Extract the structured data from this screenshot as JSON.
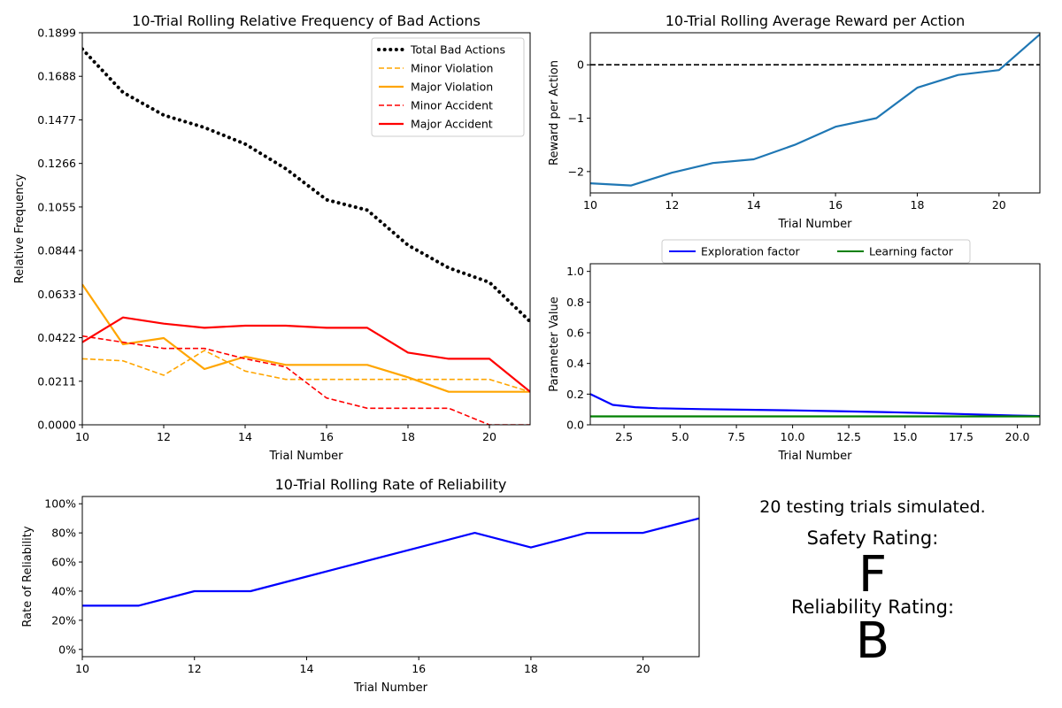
{
  "chart_data": [
    {
      "type": "line",
      "title": "10-Trial Rolling Relative Frequency of Bad Actions",
      "xlabel": "Trial Number",
      "ylabel": "Relative Frequency",
      "xlim": [
        10,
        21
      ],
      "ylim": [
        0,
        0.1899
      ],
      "x_ticks": [
        10,
        12,
        14,
        16,
        18,
        20
      ],
      "y_ticks": [
        "0.0000",
        "0.0211",
        "0.0422",
        "0.0633",
        "0.0844",
        "0.1055",
        "0.1266",
        "0.1477",
        "0.1688",
        "0.1899"
      ],
      "legend_position": "top-right",
      "grid": false,
      "x": [
        10,
        11,
        12,
        13,
        14,
        15,
        16,
        17,
        18,
        19,
        20,
        21
      ],
      "series": [
        {
          "name": "Total Bad Actions",
          "color": "#000000",
          "style": "dotted",
          "values": [
            0.182,
            0.161,
            0.15,
            0.144,
            0.136,
            0.124,
            0.109,
            0.104,
            0.087,
            0.076,
            0.069,
            0.05
          ]
        },
        {
          "name": "Minor Violation",
          "color": "#FFA500",
          "style": "dashed",
          "values": [
            0.032,
            0.031,
            0.024,
            0.036,
            0.026,
            0.022,
            0.022,
            0.022,
            0.022,
            0.022,
            0.022,
            0.016
          ]
        },
        {
          "name": "Major Violation",
          "color": "#FFA500",
          "style": "solid",
          "values": [
            0.068,
            0.039,
            0.042,
            0.027,
            0.033,
            0.029,
            0.029,
            0.029,
            0.023,
            0.016,
            0.016,
            0.016
          ]
        },
        {
          "name": "Minor Accident",
          "color": "#FF0000",
          "style": "dashed",
          "values": [
            0.043,
            0.04,
            0.037,
            0.037,
            0.032,
            0.028,
            0.013,
            0.008,
            0.008,
            0.008,
            0.0,
            0.0
          ]
        },
        {
          "name": "Major Accident",
          "color": "#FF0000",
          "style": "solid",
          "values": [
            0.04,
            0.052,
            0.049,
            0.047,
            0.048,
            0.048,
            0.047,
            0.047,
            0.035,
            0.032,
            0.032,
            0.016
          ]
        }
      ]
    },
    {
      "type": "line",
      "title": "10-Trial Rolling Average Reward per Action",
      "xlabel": "Trial Number",
      "ylabel": "Reward per Action",
      "xlim": [
        10,
        21
      ],
      "ylim": [
        -2.4,
        0.6
      ],
      "x_ticks": [
        10,
        12,
        14,
        16,
        18,
        20
      ],
      "y_ticks": [
        0,
        -1,
        -2
      ],
      "y_tick_labels": [
        "0",
        "−1",
        "−2"
      ],
      "reference_line": {
        "y": 0,
        "color": "#000000",
        "style": "dashed"
      },
      "grid": false,
      "x": [
        10,
        11,
        12,
        13,
        14,
        15,
        16,
        17,
        18,
        19,
        20,
        21
      ],
      "series": [
        {
          "color": "#1f77b4",
          "style": "solid",
          "values": [
            -2.22,
            -2.26,
            -2.02,
            -1.84,
            -1.77,
            -1.5,
            -1.16,
            -1.0,
            -0.43,
            -0.19,
            -0.1,
            0.57
          ]
        }
      ]
    },
    {
      "type": "line",
      "title": "",
      "xlabel": "Trial Number",
      "ylabel": "Parameter Value",
      "xlim": [
        1,
        21
      ],
      "ylim": [
        0,
        1.05
      ],
      "x_ticks": [
        "2.5",
        "5.0",
        "7.5",
        "10.0",
        "12.5",
        "15.0",
        "17.5",
        "20.0"
      ],
      "y_ticks": [
        "0.0",
        "0.2",
        "0.4",
        "0.6",
        "0.8",
        "1.0"
      ],
      "legend_position": "top-center (above plot)",
      "grid": false,
      "series": [
        {
          "name": "Exploration factor",
          "color": "#0000FF",
          "style": "solid",
          "x": [
            1,
            2,
            3,
            4,
            5,
            6,
            8,
            10,
            12,
            14,
            16,
            18,
            20,
            21
          ],
          "values": [
            0.2,
            0.13,
            0.115,
            0.108,
            0.105,
            0.102,
            0.098,
            0.094,
            0.089,
            0.083,
            0.076,
            0.068,
            0.06,
            0.057
          ]
        },
        {
          "name": "Learning factor",
          "color": "#008000",
          "style": "solid",
          "x": [
            1,
            21
          ],
          "values": [
            0.055,
            0.055
          ]
        }
      ]
    },
    {
      "type": "line",
      "title": "10-Trial Rolling Rate of Reliability",
      "xlabel": "Trial Number",
      "ylabel": "Rate of Reliability",
      "xlim": [
        10,
        21
      ],
      "ylim": [
        -5,
        105
      ],
      "x_ticks": [
        10,
        12,
        14,
        16,
        18,
        20
      ],
      "y_ticks": [
        "0%",
        "20%",
        "40%",
        "60%",
        "80%",
        "100%"
      ],
      "grid": false,
      "x": [
        10,
        11,
        12,
        13,
        14,
        15,
        16,
        17,
        18,
        19,
        20,
        21
      ],
      "series": [
        {
          "color": "#0000FF",
          "style": "solid",
          "values": [
            30,
            30,
            40,
            40,
            50,
            60,
            70,
            80,
            70,
            80,
            80,
            90
          ]
        }
      ]
    }
  ],
  "summary": {
    "trials_text": "20 testing trials simulated.",
    "safety_label": "Safety Rating:",
    "safety_grade": "F",
    "safety_color": "#FF0000",
    "reliability_label": "Reliability Rating:",
    "reliability_grade": "B",
    "reliability_color": "#008000"
  }
}
